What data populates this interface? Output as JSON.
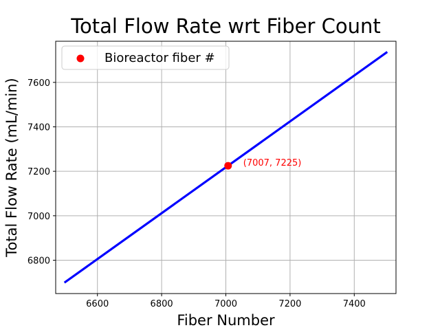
{
  "chart_data": {
    "type": "line",
    "title": "Total Flow Rate wrt Fiber Count",
    "xlabel": "Fiber Number",
    "ylabel": "Total Flow Rate (mL/min)",
    "xlim": [
      6470,
      7530
    ],
    "ylim": [
      6650,
      7785
    ],
    "xticks": [
      6600,
      6800,
      7000,
      7200,
      7400
    ],
    "yticks": [
      6800,
      7000,
      7200,
      7400,
      7600
    ],
    "grid": true,
    "legend_position": "top-left",
    "series": [
      {
        "type": "line",
        "color": "#0000ff",
        "x": [
          6500,
          7500
        ],
        "y": [
          6702,
          7734
        ]
      },
      {
        "type": "scatter",
        "name": "Bioreactor fiber #",
        "color": "#ff0000",
        "x": [
          7007
        ],
        "y": [
          7225
        ]
      }
    ],
    "annotations": [
      {
        "text": "(7007, 7225)",
        "x": 7007,
        "y": 7225,
        "color": "#ff0000"
      }
    ]
  }
}
